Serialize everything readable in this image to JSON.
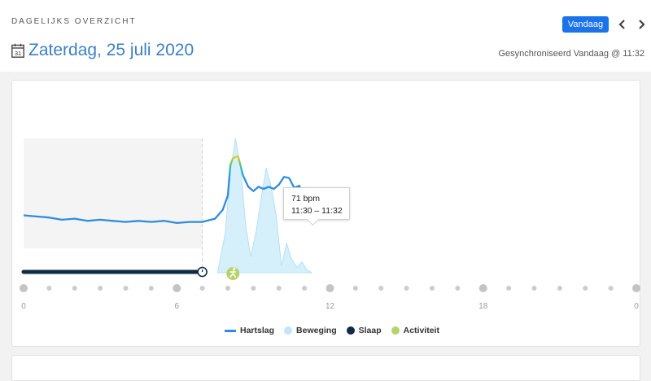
{
  "header": {
    "section_label": "DAGELIJKS OVERZICHT",
    "calendar_day": "31",
    "date_title": "Zaterdag, 25 juli 2020",
    "sync_status": "Gesynchroniseerd Vandaag @ 11:32",
    "today_button": "Vandaag"
  },
  "tooltip": {
    "value": "71 bpm",
    "time": "11:30 – 11:32"
  },
  "legend": [
    {
      "label": "Hartslag",
      "color": "#2e8de0"
    },
    {
      "label": "Beweging",
      "color": "#bfe7f7"
    },
    {
      "label": "Slaap",
      "color": "#0f2b45"
    },
    {
      "label": "Activiteit",
      "color": "#b5d36b"
    }
  ],
  "chart_data": {
    "type": "line",
    "x_unit": "hours",
    "xlim": [
      0,
      24
    ],
    "x_ticks": [
      "0",
      "6",
      "12",
      "18",
      "0"
    ],
    "heart_rate": {
      "name": "Hartslag",
      "x": [
        0,
        0.5,
        1,
        1.5,
        2,
        2.5,
        3,
        3.5,
        4,
        4.5,
        5,
        5.5,
        6,
        6.5,
        7,
        7.5,
        7.8,
        8.0,
        8.1,
        8.2,
        8.4,
        8.6,
        8.8,
        9.0,
        9.2,
        9.4,
        9.6,
        9.8,
        10.0,
        10.2,
        10.4,
        10.6,
        10.8,
        11.0,
        11.2,
        11.4,
        11.5
      ],
      "y": [
        0.3,
        0.29,
        0.28,
        0.26,
        0.27,
        0.25,
        0.26,
        0.25,
        0.24,
        0.25,
        0.24,
        0.25,
        0.23,
        0.24,
        0.24,
        0.27,
        0.35,
        0.48,
        0.76,
        0.82,
        0.84,
        0.66,
        0.56,
        0.52,
        0.56,
        0.54,
        0.56,
        0.54,
        0.58,
        0.65,
        0.64,
        0.55,
        0.57,
        0.45,
        0.42,
        0.4,
        0.41
      ]
    },
    "movement": {
      "name": "Beweging",
      "x": [
        7.6,
        7.9,
        8.1,
        8.3,
        8.5,
        8.7,
        8.9,
        9.1,
        9.3,
        9.5,
        9.7,
        9.9,
        10.1,
        10.3,
        10.5,
        10.7,
        10.9,
        11.1,
        11.3
      ],
      "y": [
        0,
        0.3,
        0.75,
        1.0,
        0.78,
        0.35,
        0.12,
        0.3,
        0.55,
        0.78,
        0.64,
        0.42,
        0.05,
        0.22,
        0.1,
        0.04,
        0.08,
        0.02,
        0
      ]
    },
    "sleep": {
      "name": "Slaap",
      "start": 0,
      "end": 7
    },
    "activity": {
      "name": "Activiteit",
      "at": 8.2
    },
    "grid": false
  }
}
